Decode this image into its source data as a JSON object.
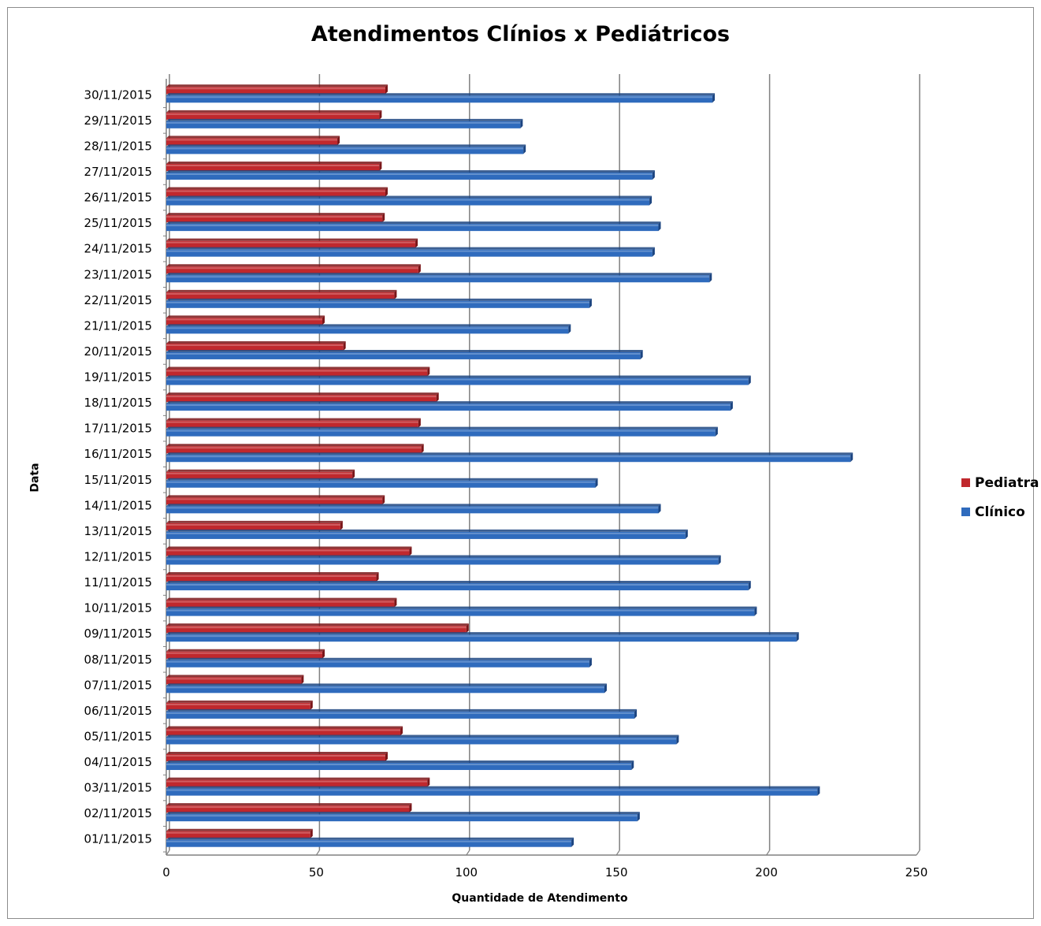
{
  "chart_data": {
    "type": "bar",
    "orientation": "horizontal",
    "title": "Atendimentos Clínios x Pediátricos",
    "xlabel": "Quantidade de Atendimento",
    "ylabel": "Data",
    "xlim": [
      0,
      250
    ],
    "xticks": [
      "0",
      "50",
      "100",
      "150",
      "200",
      "250"
    ],
    "grid": true,
    "legend_position": "right",
    "categories": [
      "01/11/2015",
      "02/11/2015",
      "03/11/2015",
      "04/11/2015",
      "05/11/2015",
      "06/11/2015",
      "07/11/2015",
      "08/11/2015",
      "09/11/2015",
      "10/11/2015",
      "11/11/2015",
      "12/11/2015",
      "13/11/2015",
      "14/11/2015",
      "15/11/2015",
      "16/11/2015",
      "17/11/2015",
      "18/11/2015",
      "19/11/2015",
      "20/11/2015",
      "21/11/2015",
      "22/11/2015",
      "23/11/2015",
      "24/11/2015",
      "25/11/2015",
      "26/11/2015",
      "27/11/2015",
      "28/11/2015",
      "29/11/2015",
      "30/11/2015"
    ],
    "series": [
      {
        "name": "Pediatra",
        "color": "#c0282d",
        "values": [
          48,
          81,
          87,
          73,
          78,
          48,
          45,
          52,
          100,
          76,
          70,
          81,
          58,
          72,
          62,
          85,
          84,
          90,
          87,
          59,
          52,
          76,
          84,
          83,
          72,
          73,
          71,
          57,
          71,
          73
        ]
      },
      {
        "name": "Clínico",
        "color": "#2f6bbd",
        "values": [
          135,
          157,
          217,
          155,
          170,
          156,
          146,
          141,
          210,
          196,
          194,
          184,
          173,
          164,
          143,
          228,
          183,
          188,
          194,
          158,
          134,
          141,
          181,
          162,
          164,
          161,
          162,
          119,
          118,
          182
        ]
      }
    ]
  }
}
